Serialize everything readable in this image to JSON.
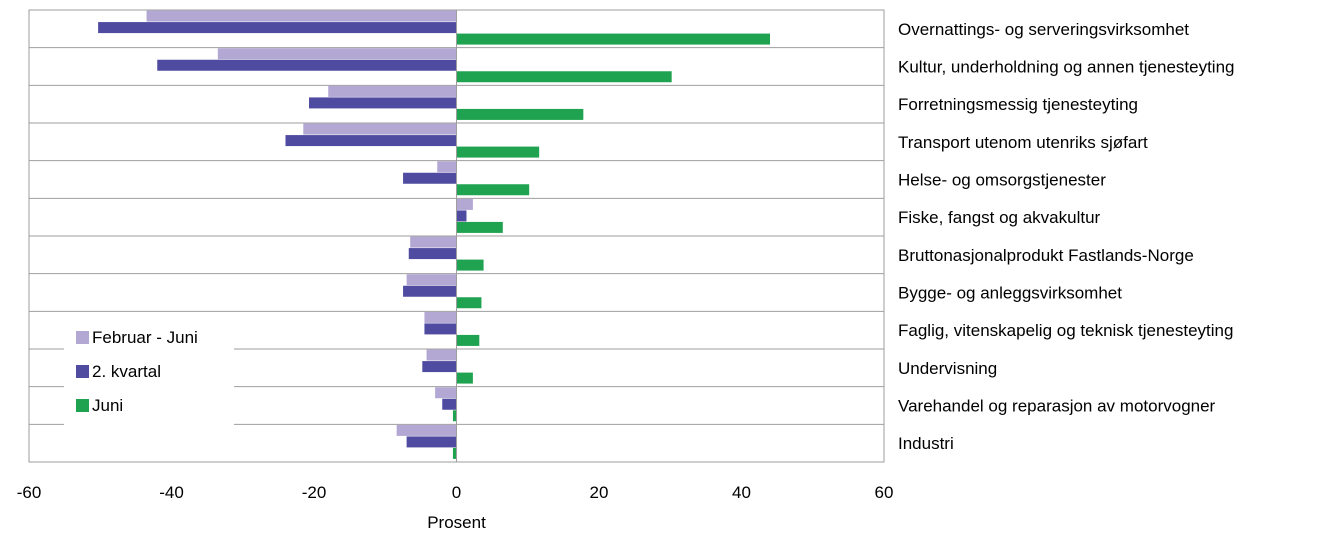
{
  "chart_data": {
    "type": "bar",
    "orientation": "horizontal",
    "xlabel": "Prosent",
    "xlim": [
      -60,
      60
    ],
    "xticks": [
      "-60",
      "-40",
      "-20",
      "0",
      "20",
      "40",
      "60"
    ],
    "grid": "horizontal category separators",
    "legend_position": "left",
    "categories": [
      "Overnattings- og serveringsvirksomhet",
      "Kultur, underholdning og annen tjenesteyting",
      "Forretningsmessig tjenesteyting",
      "Transport utenom utenriks sjøfart",
      "Helse- og omsorgstjenester",
      "Fiske, fangst og akvakultur",
      "Bruttonasjonalprodukt Fastlands-Norge",
      "Bygge- og anleggsvirksomhet",
      "Faglig, vitenskapelig og teknisk tjenesteyting",
      "Undervisning",
      "Varehandel og reparasjon av motorvogner",
      "Industri"
    ],
    "series": [
      {
        "name": "Februar - Juni",
        "color": "#b3a7d4",
        "values": [
          -43.5,
          -33.5,
          -18,
          -21.5,
          -2.7,
          2.3,
          -6.5,
          -7,
          -4.5,
          -4.2,
          -3,
          -8.4
        ]
      },
      {
        "name": "2. kvartal",
        "color": "#4f4ba0",
        "values": [
          -50.3,
          -42,
          -20.7,
          -24,
          -7.5,
          1.4,
          -6.7,
          -7.5,
          -4.5,
          -4.8,
          -2,
          -7
        ]
      },
      {
        "name": "Juni",
        "color": "#20a350",
        "values": [
          44,
          30.2,
          17.8,
          11.6,
          10.2,
          6.5,
          3.8,
          3.5,
          3.2,
          2.3,
          -0.5,
          -0.5
        ]
      }
    ]
  }
}
